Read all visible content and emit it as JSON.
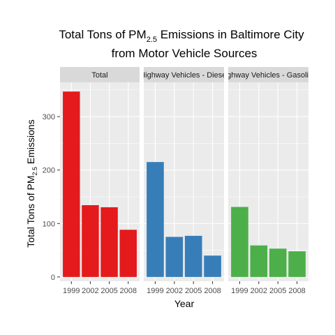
{
  "chart_data": {
    "type": "bar",
    "title_line1": {
      "pre": "Total Tons of PM",
      "sub": "2.5",
      "post": " Emissions in Baltimore City"
    },
    "title_line2": "from Motor Vehicle Sources",
    "xlabel": "Year",
    "ylabel": {
      "pre": "Total Tons of PM",
      "sub": "2.5",
      "post": " Emissions"
    },
    "categories": [
      "1999",
      "2002",
      "2005",
      "2008"
    ],
    "ylim": [
      -8,
      364
    ],
    "yticks": [
      0,
      100,
      200,
      300
    ],
    "grid": true,
    "facets": [
      {
        "strip_label": "Total",
        "color": "#E41A1C",
        "values": [
          346.8,
          134.3,
          130.4,
          88.3
        ]
      },
      {
        "strip_label": "Highway Vehicles - Diesel",
        "color": "#377EB8",
        "values": [
          215.0,
          75.0,
          77.0,
          40.0
        ]
      },
      {
        "strip_label": "Highway Vehicles - Gasoline",
        "color": "#4DAF4A",
        "values": [
          131.0,
          59.0,
          53.0,
          48.0
        ]
      }
    ],
    "colors": {
      "panel_bg": "#EBEBEB",
      "strip_bg": "#D9D9D9",
      "grid": "#FFFFFF"
    }
  }
}
